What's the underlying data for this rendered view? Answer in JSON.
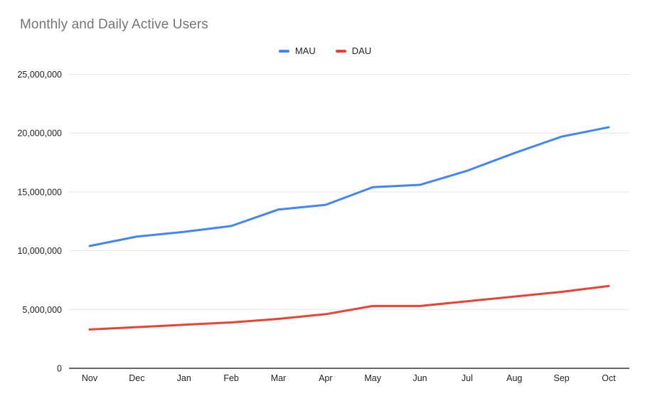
{
  "title": "Monthly and Daily Active Users",
  "legend": {
    "position": "top-center",
    "items": [
      {
        "label": "MAU",
        "color": "#4285f4"
      },
      {
        "label": "DAU",
        "color": "#ea4335"
      }
    ]
  },
  "chart_data": {
    "type": "line",
    "title": "Monthly and Daily Active Users",
    "categories": [
      "Nov",
      "Dec",
      "Jan",
      "Feb",
      "Mar",
      "Apr",
      "May",
      "Jun",
      "Jul",
      "Aug",
      "Sep",
      "Oct"
    ],
    "series": [
      {
        "name": "MAU",
        "color": "#4285f4",
        "values": [
          10400000,
          11200000,
          11600000,
          12100000,
          13500000,
          13900000,
          15400000,
          15600000,
          16800000,
          18300000,
          19700000,
          20500000
        ]
      },
      {
        "name": "DAU",
        "color": "#ea4335",
        "values": [
          3300000,
          3500000,
          3700000,
          3900000,
          4200000,
          4600000,
          5300000,
          5300000,
          5700000,
          6100000,
          6500000,
          7000000
        ]
      }
    ],
    "xlabel": "",
    "ylabel": "",
    "ylim": [
      0,
      25000000
    ],
    "y_ticks": [
      0,
      5000000,
      10000000,
      15000000,
      20000000,
      25000000
    ],
    "y_tick_labels": [
      "0",
      "5,000,000",
      "10,000,000",
      "15,000,000",
      "20,000,000",
      "25,000,000"
    ],
    "grid": true,
    "legend_position": "top-center",
    "colors": {
      "background": "#ffffff",
      "gridline": "#e6e6e6",
      "axis_baseline": "#333333",
      "tick_label": "#222222",
      "title": "#757575"
    }
  }
}
